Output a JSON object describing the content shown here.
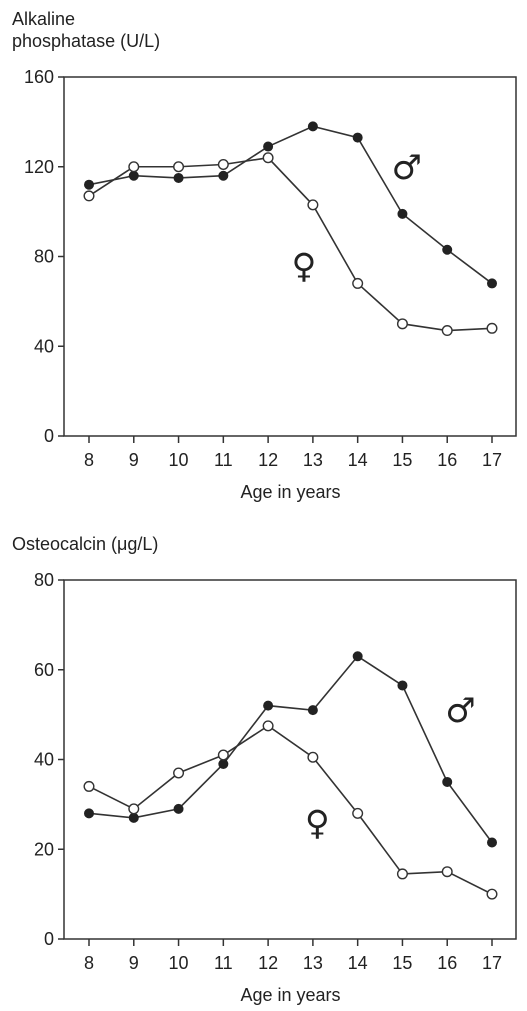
{
  "chart_data": [
    {
      "type": "line",
      "ylabel": "Alkaline\nphosphatase (U/L)",
      "xlabel": "Age in years",
      "x": [
        8,
        9,
        10,
        11,
        12,
        13,
        14,
        15,
        16,
        17
      ],
      "ylim": [
        0,
        160
      ],
      "yticks": [
        0,
        40,
        80,
        120,
        160
      ],
      "series": [
        {
          "name": "♂",
          "marker": "filled",
          "values": [
            112,
            116,
            115,
            116,
            129,
            138,
            133,
            99,
            83,
            68
          ]
        },
        {
          "name": "♀",
          "marker": "open",
          "values": [
            107,
            120,
            120,
            121,
            124,
            103,
            68,
            50,
            47,
            48
          ]
        }
      ],
      "annotations": [
        {
          "text": "♂",
          "x": 15.1,
          "y": 120
        },
        {
          "text": "♀",
          "x": 12.8,
          "y": 76
        }
      ]
    },
    {
      "type": "line",
      "ylabel": "Osteocalcin (μg/L)",
      "xlabel": "Age in years",
      "x": [
        8,
        9,
        10,
        11,
        12,
        13,
        14,
        15,
        16,
        17
      ],
      "ylim": [
        0,
        80
      ],
      "yticks": [
        0,
        20,
        40,
        60,
        80
      ],
      "series": [
        {
          "name": "♂",
          "marker": "filled",
          "values": [
            28,
            27,
            29,
            39,
            52,
            51,
            63,
            56.5,
            35,
            21.5
          ]
        },
        {
          "name": "♀",
          "marker": "open",
          "values": [
            34,
            29,
            37,
            41,
            47.5,
            40.5,
            28,
            14.5,
            15,
            10
          ]
        }
      ],
      "annotations": [
        {
          "text": "♂",
          "x": 16.3,
          "y": 51
        },
        {
          "text": "♀",
          "x": 13.1,
          "y": 26
        }
      ]
    }
  ]
}
